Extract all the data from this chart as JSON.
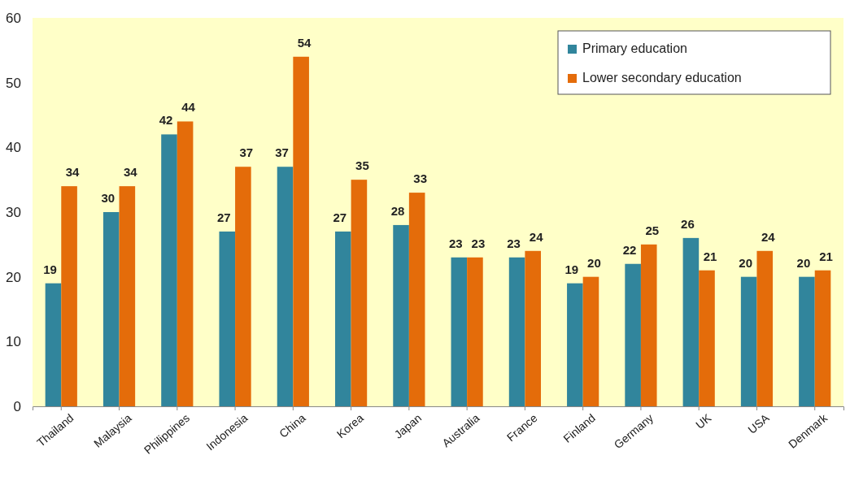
{
  "chart_data": {
    "type": "bar",
    "categories": [
      "Thailand",
      "Malaysia",
      "Philippines",
      "Indonesia",
      "China",
      "Korea",
      "Japan",
      "Australia",
      "France",
      "Finland",
      "Germany",
      "UK",
      "USA",
      "Denmark"
    ],
    "series": [
      {
        "name": "Primary education",
        "color": "#31859c",
        "values": [
          19,
          30,
          42,
          27,
          37,
          27,
          28,
          23,
          23,
          19,
          22,
          26,
          20,
          20
        ]
      },
      {
        "name": "Lower secondary education",
        "color": "#e46c0a",
        "values": [
          34,
          34,
          44,
          37,
          54,
          35,
          33,
          23,
          24,
          20,
          25,
          21,
          24,
          21
        ]
      }
    ],
    "ylim": [
      0,
      60
    ],
    "yticks": [
      0,
      10,
      20,
      30,
      40,
      50,
      60
    ],
    "data_labels": true,
    "legend": "top right"
  }
}
